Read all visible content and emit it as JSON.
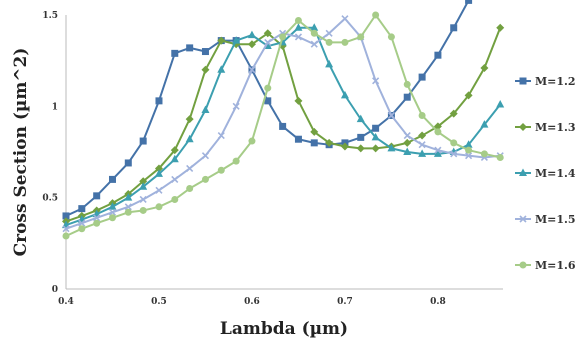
{
  "chart_data": {
    "type": "line",
    "title": "",
    "xlabel": "Lambda (µm)",
    "ylabel": "Cross Section (µm^2)",
    "xlim": [
      0.4,
      0.87
    ],
    "ylim": [
      0,
      1.5
    ],
    "xticks": [
      0.4,
      0.5,
      0.6,
      0.7,
      0.8
    ],
    "xtick_labels": [
      "0.4",
      "0.5",
      "0.6",
      "0.7",
      "0.8"
    ],
    "yticks": [
      0,
      0.5,
      1,
      1.5
    ],
    "ytick_labels": [
      "0",
      "0.5",
      "1",
      "1.5"
    ],
    "grid": false,
    "legend_position": "right",
    "series": [
      {
        "name": "M=1.2",
        "color": "#4472a8",
        "marker": "square",
        "x": [
          0.4,
          0.417,
          0.433,
          0.45,
          0.467,
          0.483,
          0.5,
          0.517,
          0.533,
          0.55,
          0.567,
          0.583,
          0.6,
          0.617,
          0.633,
          0.65,
          0.667,
          0.683,
          0.7,
          0.717,
          0.733,
          0.75,
          0.767,
          0.783,
          0.8,
          0.817,
          0.833
        ],
        "y": [
          0.4,
          0.44,
          0.51,
          0.6,
          0.69,
          0.81,
          1.03,
          1.29,
          1.32,
          1.3,
          1.36,
          1.36,
          1.2,
          1.03,
          0.89,
          0.82,
          0.8,
          0.79,
          0.8,
          0.83,
          0.88,
          0.95,
          1.05,
          1.16,
          1.28,
          1.43,
          1.58
        ]
      },
      {
        "name": "M=1.3",
        "color": "#72a040",
        "marker": "diamond",
        "x": [
          0.4,
          0.417,
          0.433,
          0.45,
          0.467,
          0.483,
          0.5,
          0.517,
          0.533,
          0.55,
          0.567,
          0.583,
          0.6,
          0.617,
          0.633,
          0.65,
          0.667,
          0.683,
          0.7,
          0.717,
          0.733,
          0.75,
          0.767,
          0.783,
          0.8,
          0.817,
          0.833,
          0.85,
          0.867
        ],
        "y": [
          0.37,
          0.4,
          0.43,
          0.47,
          0.52,
          0.59,
          0.66,
          0.76,
          0.93,
          1.2,
          1.36,
          1.34,
          1.34,
          1.4,
          1.33,
          1.03,
          0.86,
          0.8,
          0.78,
          0.77,
          0.77,
          0.78,
          0.8,
          0.84,
          0.89,
          0.96,
          1.06,
          1.21,
          1.43
        ]
      },
      {
        "name": "M=1.4",
        "color": "#3c9fb0",
        "marker": "triangle",
        "x": [
          0.4,
          0.417,
          0.433,
          0.45,
          0.467,
          0.483,
          0.5,
          0.517,
          0.533,
          0.55,
          0.567,
          0.583,
          0.6,
          0.617,
          0.633,
          0.65,
          0.667,
          0.683,
          0.7,
          0.717,
          0.733,
          0.75,
          0.767,
          0.783,
          0.8,
          0.817,
          0.833,
          0.85,
          0.867
        ],
        "y": [
          0.35,
          0.38,
          0.41,
          0.45,
          0.5,
          0.56,
          0.63,
          0.71,
          0.82,
          0.98,
          1.2,
          1.36,
          1.39,
          1.33,
          1.35,
          1.43,
          1.43,
          1.23,
          1.06,
          0.93,
          0.83,
          0.77,
          0.75,
          0.74,
          0.74,
          0.75,
          0.79,
          0.9,
          1.01
        ]
      },
      {
        "name": "M=1.5",
        "color": "#a0b2dc",
        "marker": "cross",
        "x": [
          0.4,
          0.417,
          0.433,
          0.45,
          0.467,
          0.483,
          0.5,
          0.517,
          0.533,
          0.55,
          0.567,
          0.583,
          0.6,
          0.617,
          0.633,
          0.65,
          0.667,
          0.683,
          0.7,
          0.717,
          0.733,
          0.75,
          0.767,
          0.783,
          0.8,
          0.817,
          0.833,
          0.85,
          0.867
        ],
        "y": [
          0.33,
          0.36,
          0.39,
          0.42,
          0.45,
          0.49,
          0.54,
          0.6,
          0.66,
          0.73,
          0.84,
          1.0,
          1.2,
          1.35,
          1.4,
          1.38,
          1.34,
          1.4,
          1.48,
          1.38,
          1.14,
          0.95,
          0.84,
          0.79,
          0.76,
          0.74,
          0.73,
          0.72,
          0.73
        ]
      },
      {
        "name": "M=1.6",
        "color": "#a6cc88",
        "marker": "circle",
        "x": [
          0.4,
          0.417,
          0.433,
          0.45,
          0.467,
          0.483,
          0.5,
          0.517,
          0.533,
          0.55,
          0.567,
          0.583,
          0.6,
          0.617,
          0.633,
          0.65,
          0.667,
          0.683,
          0.7,
          0.717,
          0.733,
          0.75,
          0.767,
          0.783,
          0.8,
          0.817,
          0.833,
          0.85,
          0.867
        ],
        "y": [
          0.29,
          0.33,
          0.36,
          0.39,
          0.42,
          0.43,
          0.45,
          0.49,
          0.55,
          0.6,
          0.65,
          0.7,
          0.81,
          1.1,
          1.38,
          1.47,
          1.4,
          1.35,
          1.35,
          1.38,
          1.5,
          1.38,
          1.12,
          0.95,
          0.86,
          0.8,
          0.76,
          0.74,
          0.72
        ]
      }
    ]
  }
}
